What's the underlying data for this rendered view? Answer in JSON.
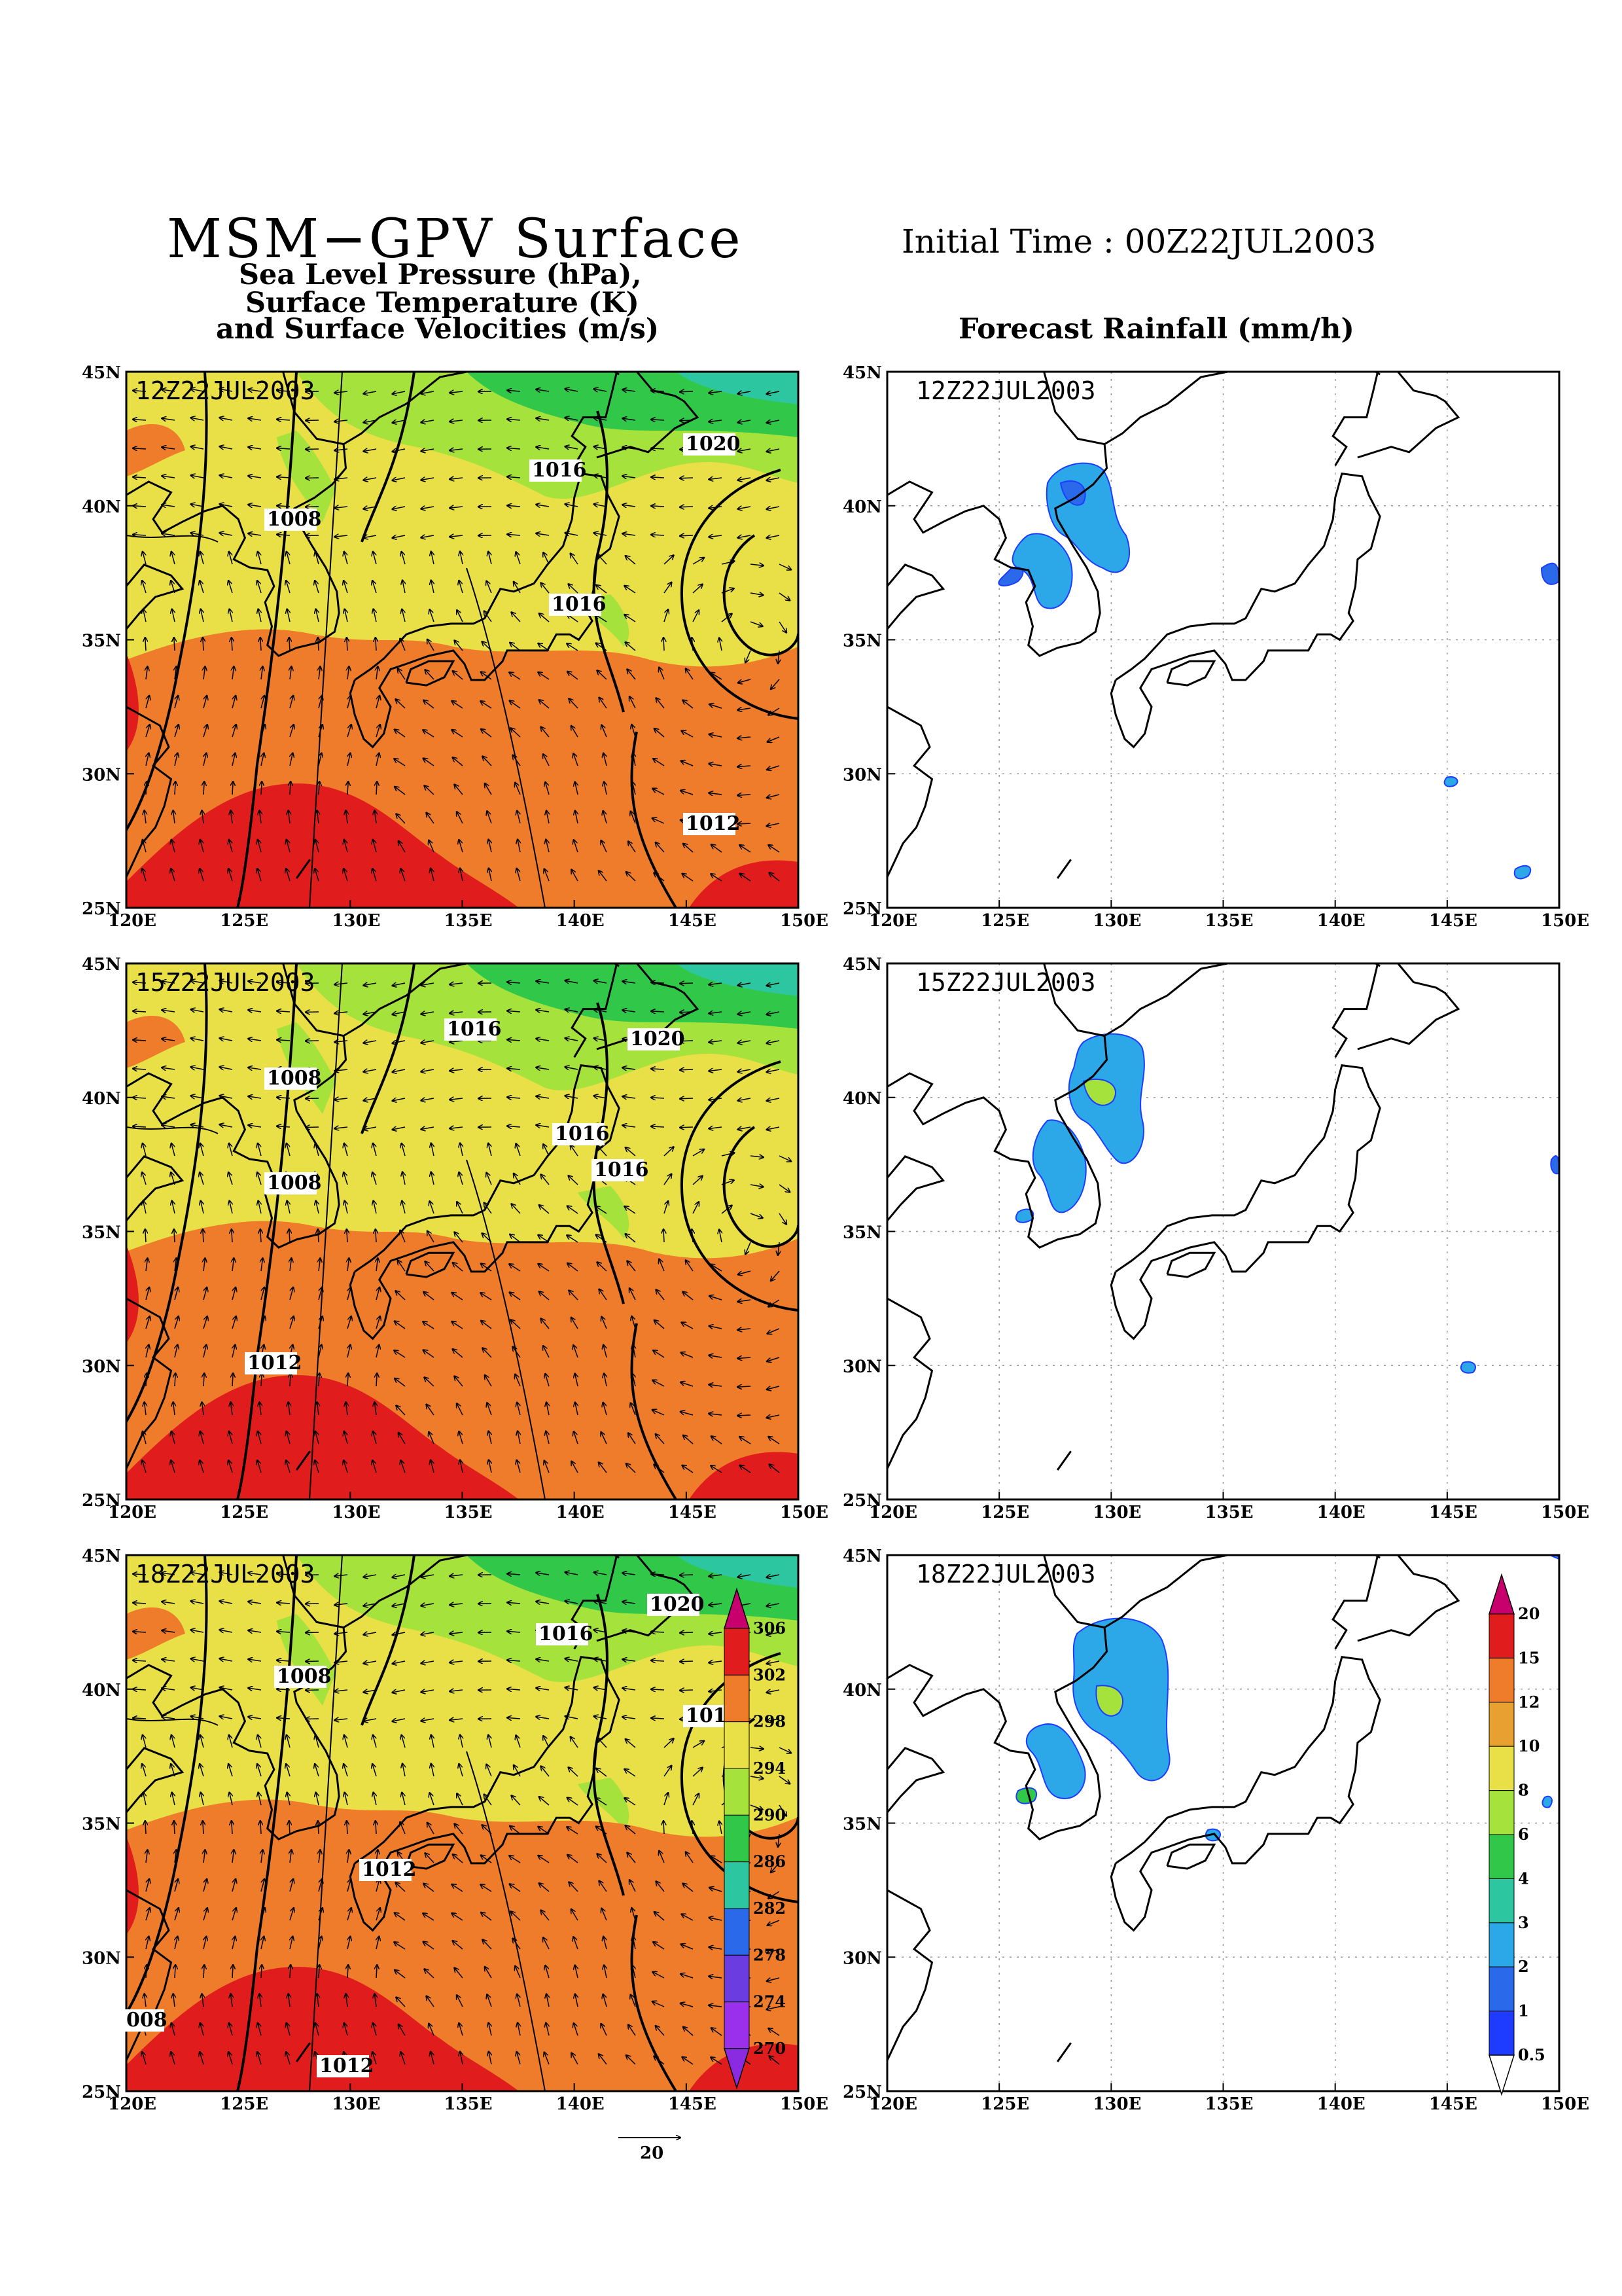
{
  "header": {
    "title": "MSM−GPV Surface",
    "subtitle_line1": "Sea Level Pressure (hPa),",
    "subtitle_line2": "Surface Temperature (K)",
    "subtitle_line3": "and Surface Velocities (m/s)",
    "initial_time": "Initial Time : 00Z22JUL2003",
    "rainfall_title": "Forecast Rainfall (mm/h)"
  },
  "axes": {
    "lon_labels": [
      "120E",
      "125E",
      "130E",
      "135E",
      "140E",
      "145E",
      "150E"
    ],
    "lat_labels": [
      "45N",
      "40N",
      "35N",
      "30N",
      "25N"
    ],
    "lon_range": [
      120,
      150
    ],
    "lat_range": [
      25,
      45
    ]
  },
  "panels": [
    {
      "time": "12Z22JUL2003",
      "isobars": [
        "1020",
        "1016",
        "1008",
        "1016",
        "1012"
      ]
    },
    {
      "time": "15Z22JUL2003",
      "isobars": [
        "1016",
        "1020",
        "1008",
        "1016",
        "1016",
        "1008",
        "1012"
      ]
    },
    {
      "time": "18Z22JUL2003",
      "isobars": [
        "1020",
        "1016",
        "1008",
        "101",
        "1012",
        "008",
        "1012"
      ]
    }
  ],
  "temperature_colorbar": {
    "labels": [
      "306",
      "302",
      "298",
      "294",
      "290",
      "286",
      "282",
      "278",
      "274",
      "270"
    ],
    "colors": [
      "#c8006e",
      "#e11c1c",
      "#ee7c2b",
      "#e8e046",
      "#a6e23c",
      "#31c84a",
      "#2cc7a0",
      "#2a6aea",
      "#6b3ce0",
      "#9b30ec",
      "#8a2be2"
    ]
  },
  "rain_colorbar": {
    "labels": [
      "20",
      "15",
      "12",
      "10",
      "8",
      "6",
      "4",
      "3",
      "2",
      "1",
      "0.5"
    ],
    "colors": [
      "#c8006e",
      "#e11c1c",
      "#ee7c2b",
      "#e8a030",
      "#e8e046",
      "#a6e23c",
      "#31c84a",
      "#2cc7a0",
      "#2ca8e8",
      "#2a6aea",
      "#1e3cff"
    ]
  },
  "vector_reference": {
    "label": "20"
  }
}
